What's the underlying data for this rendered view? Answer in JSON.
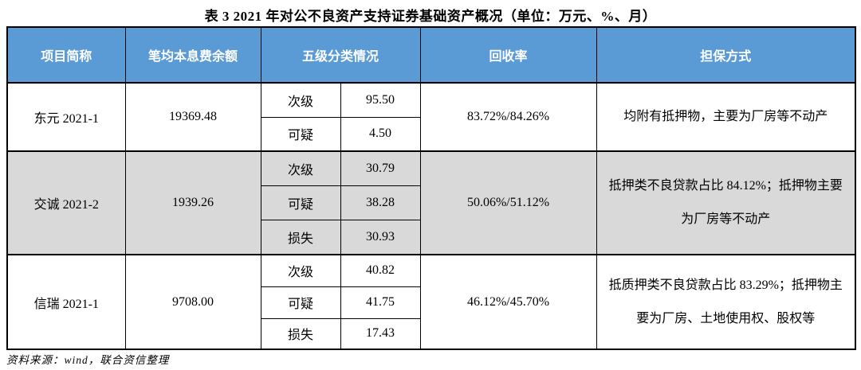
{
  "title": "表 3 2021 年对公不良资产支持证券基础资产概况（单位：万元、%、月）",
  "footer": {
    "source": "资料来源：wind，联合资信整理"
  },
  "colors": {
    "header_bg": "#5b9bd5",
    "header_text": "#ffffff",
    "alt_row_bg": "#d9d9d9",
    "border": "#000000"
  },
  "table": {
    "columns": [
      "项目简称",
      "笔均本息费余额",
      "五级分类情况",
      "回收率",
      "担保方式"
    ],
    "rows": [
      {
        "project": "东元 2021-1",
        "balance": "19369.48",
        "classifications": [
          {
            "grade": "次级",
            "value": "95.50"
          },
          {
            "grade": "可疑",
            "value": "4.50"
          }
        ],
        "recovery": "83.72%/84.26%",
        "guarantee": "均附有抵押物，主要为厂房等不动产"
      },
      {
        "project": "交诚 2021-2",
        "balance": "1939.26",
        "classifications": [
          {
            "grade": "次级",
            "value": "30.79"
          },
          {
            "grade": "可疑",
            "value": "38.28"
          },
          {
            "grade": "损失",
            "value": "30.93"
          }
        ],
        "recovery": "50.06%/51.12%",
        "guarantee": "抵押类不良贷款占比 84.12%；抵押物主要为厂房等不动产"
      },
      {
        "project": "信瑞 2021-1",
        "balance": "9708.00",
        "classifications": [
          {
            "grade": "次级",
            "value": "40.82"
          },
          {
            "grade": "可疑",
            "value": "41.75"
          },
          {
            "grade": "损失",
            "value": "17.43"
          }
        ],
        "recovery": "46.12%/45.70%",
        "guarantee": "抵质押类不良贷款占比 83.29%；抵押物主要为厂房、土地使用权、股权等"
      }
    ]
  }
}
